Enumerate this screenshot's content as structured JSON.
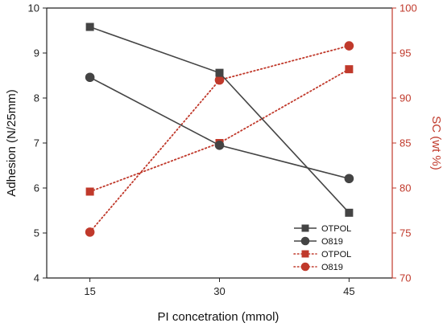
{
  "chart_data": {
    "type": "line",
    "x": [
      15,
      30,
      45
    ],
    "xlabel": "PI concetration (mmol)",
    "ylabel": "Adhesion (N/25mm)",
    "ylabel_right": "SC (wt %)",
    "xlim": [
      10,
      50
    ],
    "ylim": [
      4,
      10
    ],
    "ylim_right": [
      70,
      100
    ],
    "x_ticks": [
      15,
      30,
      45
    ],
    "y_ticks": [
      4,
      5,
      6,
      7,
      8,
      9,
      10
    ],
    "y_ticks_right": [
      70,
      75,
      80,
      85,
      90,
      95,
      100
    ],
    "grid": false,
    "legend_position": "bottom-right",
    "series": [
      {
        "name": "OTPOL",
        "axis": "left",
        "marker": "square",
        "line": "solid",
        "color": "#444444",
        "values": [
          9.58,
          8.56,
          5.45
        ]
      },
      {
        "name": "O819",
        "axis": "left",
        "marker": "circle",
        "line": "solid",
        "color": "#444444",
        "values": [
          8.46,
          6.95,
          6.21
        ]
      },
      {
        "name": "OTPOL",
        "axis": "right",
        "marker": "square",
        "line": "dotted",
        "color": "#c0392b",
        "values": [
          79.6,
          85.0,
          93.2
        ]
      },
      {
        "name": "O819",
        "axis": "right",
        "marker": "circle",
        "line": "dotted",
        "color": "#c0392b",
        "values": [
          75.1,
          92.0,
          95.8
        ]
      }
    ]
  }
}
